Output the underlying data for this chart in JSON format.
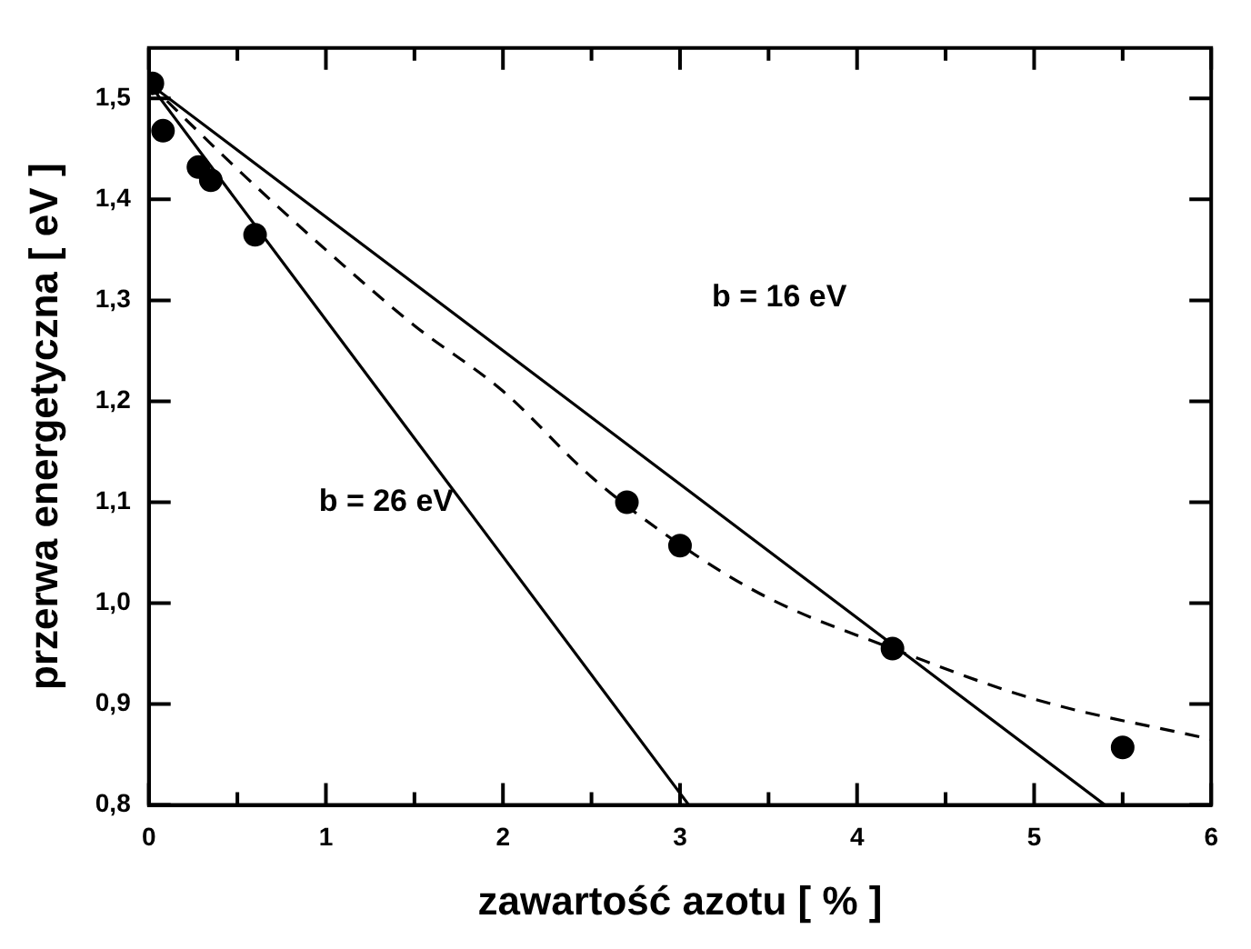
{
  "chart_data": {
    "type": "scatter",
    "xlabel": "zawartość azotu [ % ]",
    "ylabel": "przerwa energetyczna [ eV ]",
    "xlim": [
      0,
      6
    ],
    "ylim": [
      0.8,
      1.55
    ],
    "xticks": [
      0,
      {
        "value": 0.5,
        "label": null
      },
      1,
      {
        "value": 1.5,
        "label": null
      },
      2,
      {
        "value": 2.5,
        "label": null
      },
      3,
      {
        "value": 3.5,
        "label": null
      },
      4,
      {
        "value": 4.5,
        "label": null
      },
      5,
      {
        "value": 5.5,
        "label": null
      },
      6
    ],
    "yticks": [
      {
        "value": 0.8,
        "label": "0,8"
      },
      {
        "value": 0.9,
        "label": "0,9"
      },
      {
        "value": 1.0,
        "label": "1,0"
      },
      {
        "value": 1.1,
        "label": "1,1"
      },
      {
        "value": 1.2,
        "label": "1,2"
      },
      {
        "value": 1.3,
        "label": "1,3"
      },
      {
        "value": 1.4,
        "label": "1,4"
      },
      {
        "value": 1.5,
        "label": "1,5"
      }
    ],
    "grid": false,
    "legend": false,
    "series": [
      {
        "type": "scatter",
        "color": "#000000",
        "marker": "circle",
        "x": [
          0.02,
          0.08,
          0.28,
          0.35,
          0.6,
          2.7,
          3.0,
          4.2,
          5.5
        ],
        "values": [
          1.515,
          1.468,
          1.432,
          1.419,
          1.365,
          1.1,
          1.057,
          0.955,
          0.857
        ]
      },
      {
        "type": "line",
        "color": "#000000",
        "marker": "none",
        "line_style": "solid",
        "x": [
          0,
          3.05
        ],
        "values": [
          1.515,
          0.8
        ]
      },
      {
        "type": "line",
        "color": "#000000",
        "marker": "none",
        "line_style": "solid",
        "x": [
          0,
          5.4
        ],
        "values": [
          1.515,
          0.8
        ]
      },
      {
        "type": "line",
        "color": "#000000",
        "marker": "none",
        "line_style": "dashed",
        "x": [
          0,
          0.5,
          1,
          1.5,
          2,
          2.5,
          3,
          3.5,
          4.2,
          5,
          6
        ],
        "values": [
          1.515,
          1.43,
          1.35,
          1.275,
          1.21,
          1.125,
          1.058,
          1.005,
          0.955,
          0.905,
          0.865
        ]
      }
    ],
    "annotations": [
      "b = 16 eV",
      "b = 26 eV"
    ]
  }
}
